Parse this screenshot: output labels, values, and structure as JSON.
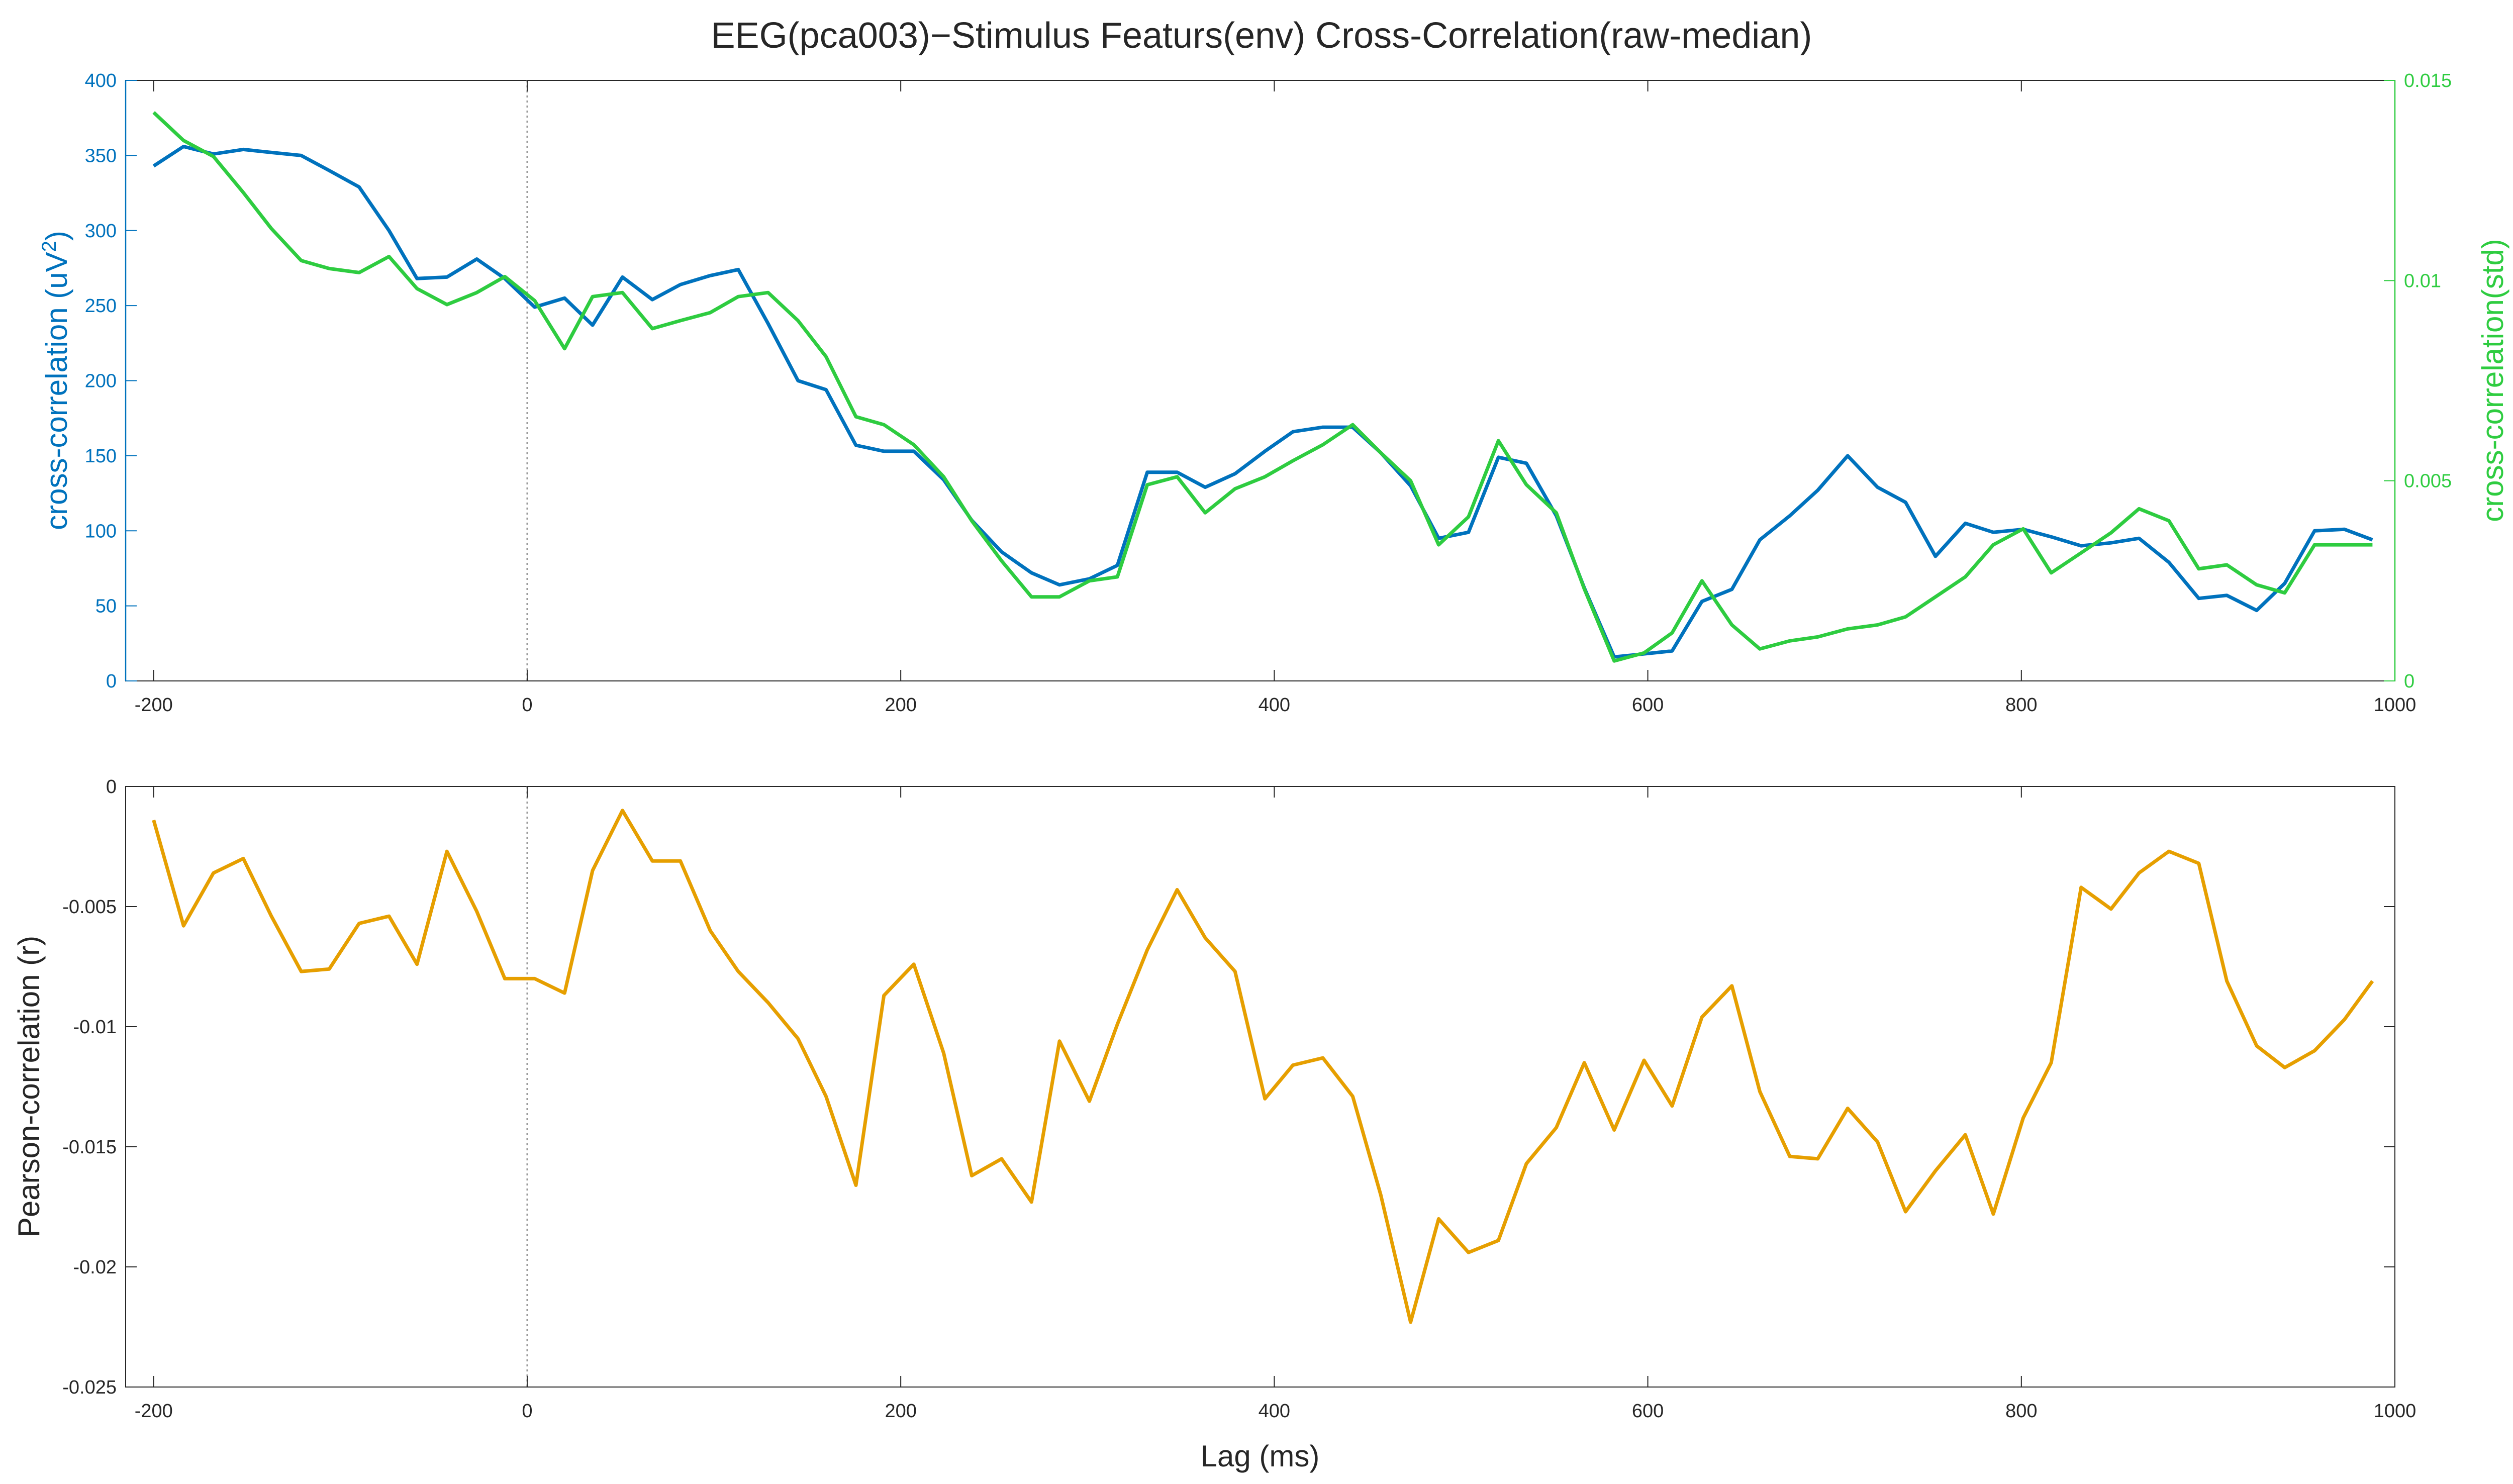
{
  "title": "EEG(pca003)−Stimulus Featurs(env) Cross-Correlation(raw-median)",
  "colors": {
    "blue": "#0072BD",
    "green": "#2ECC40",
    "orange": "#E69F00",
    "axis": "#262626",
    "zero_line": "#9a9a9a"
  },
  "chart_data": [
    {
      "type": "line",
      "panel": "top",
      "title": "EEG(pca003)−Stimulus Featurs(env) Cross-Correlation(raw-median)",
      "xlabel": "",
      "ylabel_left": "cross-correlation (uV",
      "ylabel_left_sup": "2",
      "ylabel_left_close": ")",
      "ylabel_right": "cross-correlation(std)",
      "xlim": [
        -215,
        1000
      ],
      "ylim_left": [
        0,
        400
      ],
      "ylim_right": [
        0,
        0.015
      ],
      "x_ticks": [
        "-200",
        "0",
        "200",
        "400",
        "600",
        "800",
        "1000"
      ],
      "x_tick_values": [
        -200,
        0,
        200,
        400,
        600,
        800,
        1000
      ],
      "y_ticks_left": [
        "0",
        "50",
        "100",
        "150",
        "200",
        "250",
        "300",
        "350",
        "400"
      ],
      "y_tick_values_left": [
        0,
        50,
        100,
        150,
        200,
        250,
        300,
        350,
        400
      ],
      "y_ticks_right": [
        "0",
        "0.005",
        "0.01",
        "0.015"
      ],
      "y_tick_values_right": [
        0,
        0.005,
        0.01,
        0.015
      ],
      "vline_x": 0,
      "grid": false,
      "series": [
        {
          "axis": "left",
          "color": "#0072BD",
          "x": [
            -200,
            -184,
            -168,
            -152,
            -137,
            -121,
            -106,
            -90,
            -74,
            -59,
            -43,
            -27,
            -12,
            4,
            20,
            35,
            51,
            67,
            82,
            98,
            113,
            129,
            145,
            160,
            176,
            191,
            207,
            223,
            238,
            254,
            270,
            285,
            301,
            316,
            332,
            348,
            363,
            379,
            395,
            410,
            426,
            442,
            457,
            473,
            488,
            504,
            520,
            535,
            551,
            566,
            582,
            598,
            613,
            629,
            645,
            660,
            676,
            691,
            707,
            723,
            738,
            754,
            770,
            785,
            801,
            816,
            832,
            848,
            863,
            879,
            895,
            910,
            926,
            941,
            957,
            973,
            988
          ],
          "y": [
            343,
            356,
            351,
            354,
            352,
            350,
            340,
            329,
            300,
            268,
            269,
            281,
            268,
            249,
            255,
            237,
            269,
            254,
            264,
            270,
            274,
            238,
            200,
            194,
            157,
            153,
            153,
            134,
            107,
            86,
            72,
            64,
            68,
            77,
            139,
            139,
            129,
            138,
            153,
            166,
            169,
            169,
            152,
            130,
            95,
            99,
            149,
            145,
            110,
            62,
            16,
            18,
            20,
            53,
            61,
            94,
            110,
            127,
            150,
            129,
            119,
            83,
            105,
            99,
            101,
            96,
            90,
            92,
            95,
            79,
            55,
            57,
            47,
            65,
            100,
            101,
            94
          ]
        },
        {
          "axis": "right",
          "color": "#2ECC40",
          "x": [
            -200,
            -184,
            -168,
            -152,
            -137,
            -121,
            -106,
            -90,
            -74,
            -59,
            -43,
            -27,
            -12,
            4,
            20,
            35,
            51,
            67,
            82,
            98,
            113,
            129,
            145,
            160,
            176,
            191,
            207,
            223,
            238,
            254,
            270,
            285,
            301,
            316,
            332,
            348,
            363,
            379,
            395,
            410,
            426,
            442,
            457,
            473,
            488,
            504,
            520,
            535,
            551,
            566,
            582,
            598,
            613,
            629,
            645,
            660,
            676,
            691,
            707,
            723,
            738,
            754,
            770,
            785,
            801,
            816,
            832,
            848,
            863,
            879,
            895,
            910,
            926,
            941,
            957,
            973,
            988
          ],
          "y": [
            0.0142,
            0.0135,
            0.0131,
            0.0122,
            0.0113,
            0.0105,
            0.0103,
            0.0102,
            0.0106,
            0.0098,
            0.0094,
            0.0097,
            0.0101,
            0.0095,
            0.0083,
            0.0096,
            0.0097,
            0.0088,
            0.009,
            0.0092,
            0.0096,
            0.0097,
            0.009,
            0.0081,
            0.0066,
            0.0064,
            0.0059,
            0.0051,
            0.004,
            0.003,
            0.0021,
            0.0021,
            0.0025,
            0.0026,
            0.0049,
            0.0051,
            0.0042,
            0.0048,
            0.0051,
            0.0055,
            0.0059,
            0.0064,
            0.0057,
            0.005,
            0.0034,
            0.0041,
            0.006,
            0.0049,
            0.0042,
            0.0023,
            0.0005,
            0.0007,
            0.0012,
            0.0025,
            0.0014,
            0.0008,
            0.001,
            0.0011,
            0.0013,
            0.0014,
            0.0016,
            0.0021,
            0.0026,
            0.0034,
            0.0038,
            0.0027,
            0.0032,
            0.0037,
            0.0043,
            0.004,
            0.0028,
            0.0029,
            0.0024,
            0.0022,
            0.0034,
            0.0034,
            0.0034
          ]
        }
      ]
    },
    {
      "type": "line",
      "panel": "bottom",
      "xlabel": "Lag (ms)",
      "ylabel": "Pearson-correlation (r)",
      "xlim": [
        -215,
        1000
      ],
      "ylim": [
        -0.025,
        0
      ],
      "x_ticks": [
        "-200",
        "0",
        "200",
        "400",
        "600",
        "800",
        "1000"
      ],
      "x_tick_values": [
        -200,
        0,
        200,
        400,
        600,
        800,
        1000
      ],
      "y_ticks": [
        "-0.025",
        "-0.02",
        "-0.015",
        "-0.01",
        "-0.005",
        "0"
      ],
      "y_tick_values": [
        -0.025,
        -0.02,
        -0.015,
        -0.01,
        -0.005,
        0
      ],
      "vline_x": 0,
      "grid": false,
      "series": [
        {
          "color": "#E69F00",
          "x": [
            -200,
            -184,
            -168,
            -152,
            -137,
            -121,
            -106,
            -90,
            -74,
            -59,
            -43,
            -27,
            -12,
            4,
            20,
            35,
            51,
            67,
            82,
            98,
            113,
            129,
            145,
            160,
            176,
            191,
            207,
            223,
            238,
            254,
            270,
            285,
            301,
            316,
            332,
            348,
            363,
            379,
            395,
            410,
            426,
            442,
            457,
            473,
            488,
            504,
            520,
            535,
            551,
            566,
            582,
            598,
            613,
            629,
            645,
            660,
            676,
            691,
            707,
            723,
            738,
            754,
            770,
            785,
            801,
            816,
            832,
            848,
            863,
            879,
            895,
            910,
            926,
            941,
            957,
            973,
            988
          ],
          "y": [
            -0.0014,
            -0.0058,
            -0.0036,
            -0.003,
            -0.0054,
            -0.0077,
            -0.0076,
            -0.0057,
            -0.0054,
            -0.0074,
            -0.0027,
            -0.0052,
            -0.008,
            -0.008,
            -0.0086,
            -0.0035,
            -0.001,
            -0.0031,
            -0.0031,
            -0.006,
            -0.0077,
            -0.009,
            -0.0105,
            -0.0129,
            -0.0166,
            -0.0087,
            -0.0074,
            -0.0111,
            -0.0162,
            -0.0155,
            -0.0173,
            -0.0106,
            -0.0131,
            -0.0099,
            -0.0068,
            -0.0043,
            -0.0063,
            -0.0077,
            -0.013,
            -0.0116,
            -0.0113,
            -0.0129,
            -0.017,
            -0.0223,
            -0.018,
            -0.0194,
            -0.0189,
            -0.0157,
            -0.0142,
            -0.0115,
            -0.0143,
            -0.0114,
            -0.0133,
            -0.0096,
            -0.0083,
            -0.0127,
            -0.0154,
            -0.0155,
            -0.0134,
            -0.0148,
            -0.0177,
            -0.016,
            -0.0145,
            -0.0178,
            -0.0138,
            -0.0115,
            -0.0042,
            -0.0051,
            -0.0036,
            -0.0027,
            -0.0032,
            -0.0081,
            -0.0108,
            -0.0117,
            -0.011,
            -0.0097,
            -0.0081
          ]
        }
      ]
    }
  ]
}
